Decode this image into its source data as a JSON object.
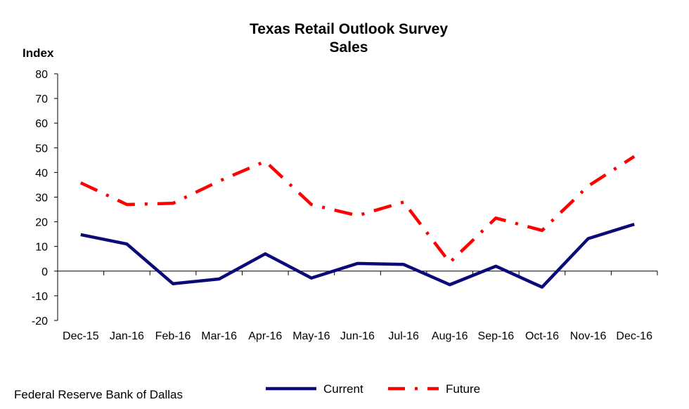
{
  "chart_data": {
    "type": "line",
    "title": "Texas Retail Outlook Survey",
    "subtitle": "Sales",
    "ylabel": "Index",
    "xlabel": "",
    "ylim": [
      -20,
      80
    ],
    "yticks": [
      "80",
      "70",
      "60",
      "50",
      "40",
      "30",
      "20",
      "10",
      "0",
      "-10",
      "-20"
    ],
    "ytick_values": [
      80,
      70,
      60,
      50,
      40,
      30,
      20,
      10,
      0,
      -10,
      -20
    ],
    "categories": [
      "Dec-15",
      "Jan-16",
      "Feb-16",
      "Mar-16",
      "Apr-16",
      "May-16",
      "Jun-16",
      "Jul-16",
      "Aug-16",
      "Sep-16",
      "Oct-16",
      "Nov-16",
      "Dec-16"
    ],
    "series": [
      {
        "name": "Current",
        "color": "#0a0a78",
        "values": [
          14.8,
          11.0,
          -5.1,
          -3.2,
          7.0,
          -2.8,
          3.1,
          2.7,
          -5.5,
          2.0,
          -6.5,
          13.2,
          19.0
        ]
      },
      {
        "name": "Future",
        "color": "#ff0000",
        "values": [
          35.8,
          27.0,
          27.5,
          36.5,
          44.5,
          27.0,
          22.5,
          28.0,
          3.5,
          21.5,
          16.5,
          34.5,
          46.5
        ]
      }
    ],
    "grid": false,
    "legend_position": "bottom"
  },
  "footer": {
    "source": "Federal Reserve Bank of Dallas"
  }
}
